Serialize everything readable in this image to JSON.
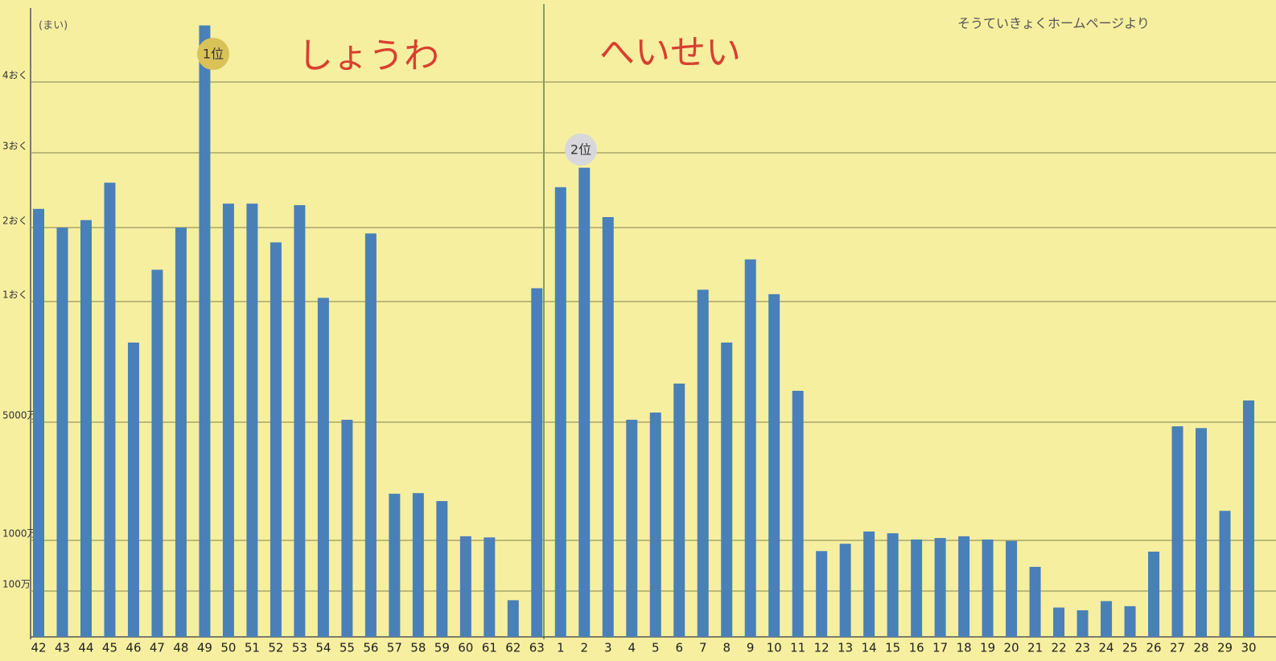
{
  "chart_data": {
    "type": "bar",
    "y_unit": "(まい)",
    "eras": [
      "しょうわ",
      "へいせい"
    ],
    "source": "そうていきょくホームページより",
    "annotations": [
      "1位",
      "2位"
    ],
    "categories": [
      "42",
      "43",
      "44",
      "45",
      "46",
      "47",
      "48",
      "49",
      "50",
      "51",
      "52",
      "53",
      "54",
      "55",
      "56",
      "57",
      "58",
      "59",
      "60",
      "61",
      "62",
      "63",
      "1",
      "2",
      "3",
      "4",
      "5",
      "6",
      "7",
      "8",
      "9",
      "10",
      "11",
      "12",
      "13",
      "14",
      "15",
      "16",
      "17",
      "18",
      "19",
      "20",
      "21",
      "22",
      "23",
      "24",
      "25",
      "26",
      "27",
      "28",
      "29",
      "30"
    ],
    "values": [
      225000000,
      200000000,
      210000000,
      260000000,
      83000000,
      143000000,
      200000000,
      480000000,
      232000000,
      232000000,
      180000000,
      230000000,
      105000000,
      51000000,
      192000000,
      25800000,
      26000000,
      23300000,
      11400000,
      11000000,
      800000,
      118000000,
      254000000,
      280000000,
      214000000,
      51000000,
      54000000,
      66000000,
      116000000,
      83000000,
      157000000,
      110000000,
      63000000,
      8100000,
      9400000,
      13000000,
      12400000,
      10300000,
      10800000,
      11400000,
      10300000,
      9900000,
      5300000,
      640000,
      580000,
      780000,
      670000,
      8000000,
      48600000,
      48000000,
      20000000,
      59000000
    ],
    "color": "#4a80b8",
    "ylim": [
      0,
      500000000
    ],
    "yticks": [
      {
        "value": 1000000,
        "label": "100万"
      },
      {
        "value": 10000000,
        "label": "1000万"
      },
      {
        "value": 50000000,
        "label": "5000万"
      },
      {
        "value": 100000000,
        "label": "1おく"
      },
      {
        "value": 200000000,
        "label": "2おく"
      },
      {
        "value": 300000000,
        "label": "3おく"
      },
      {
        "value": 400000000,
        "label": "4おく"
      }
    ],
    "grid": true
  }
}
